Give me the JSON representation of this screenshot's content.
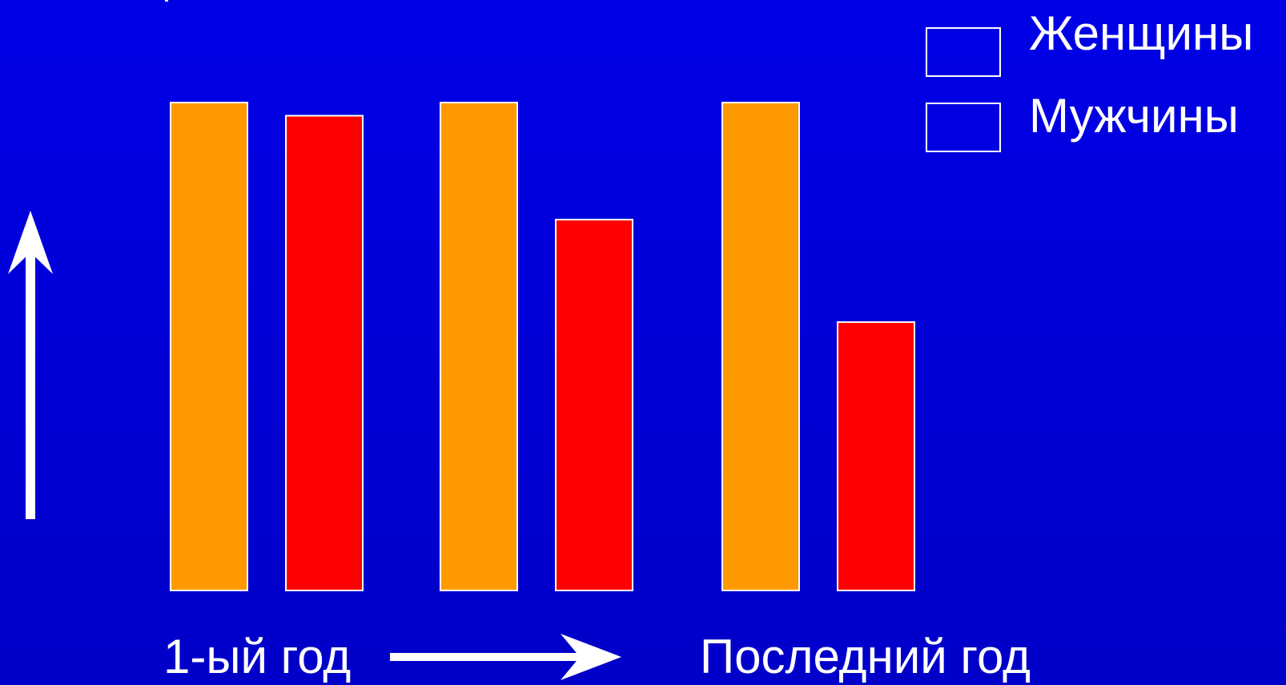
{
  "chart_data": {
    "type": "bar",
    "categories": [
      "",
      "",
      ""
    ],
    "series": [
      {
        "name": "Женщины",
        "values": [
          100,
          100,
          100
        ],
        "color": "#ff9900"
      },
      {
        "name": "Мужчины",
        "values": [
          97.3,
          76.0,
          55.0
        ],
        "color": "#ff0000"
      }
    ],
    "ylim": [
      0,
      100
    ],
    "grid": false,
    "legend_position": "top-right",
    "xlabel_start": "1-ый год",
    "xlabel_end": "Последний год"
  },
  "colors": {
    "background": "#0000d8",
    "axis_arrows": "#ffffff",
    "bar_border": "#ffffff"
  },
  "icons": {
    "vertical_arrow": "arrow-up-icon",
    "horizontal_arrow": "arrow-right-icon"
  }
}
